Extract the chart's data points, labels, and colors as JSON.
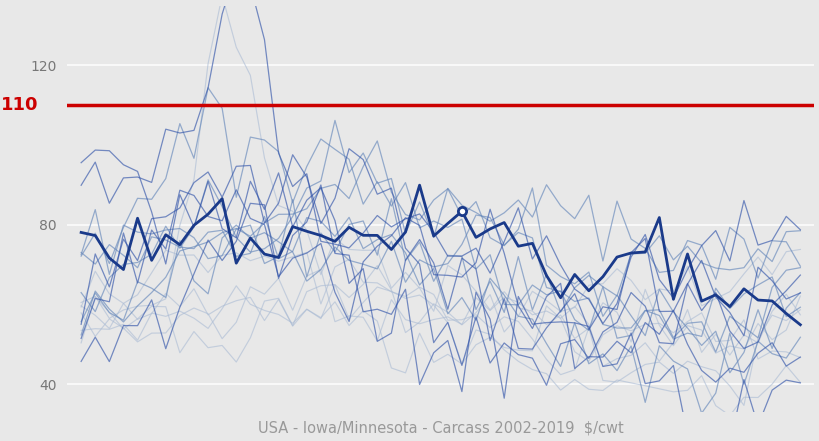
{
  "title": "USA - Iowa/Minnesota - Carcass 2002-2019  $/cwt",
  "title_color": "#999999",
  "title_fontsize": 10.5,
  "plot_bg_color": "#e8e8e8",
  "yticks": [
    40,
    80,
    120
  ],
  "ylim": [
    33,
    135
  ],
  "red_line_value": 110,
  "red_line_color": "#cc0000",
  "red_line_label": "110",
  "red_label_color": "#cc0000",
  "red_label_fontsize": 13,
  "num_points": 936,
  "highlight_color": "#1a3a8a",
  "highlight_linewidth": 2.0,
  "light_blue": "#7799cc",
  "mid_blue": "#4466aa",
  "dark_blue": "#1a3a8a",
  "dot_color": "#1a3a8a",
  "dot_size": 35,
  "grid_color": "#ffffff",
  "grid_linewidth": 1.2
}
